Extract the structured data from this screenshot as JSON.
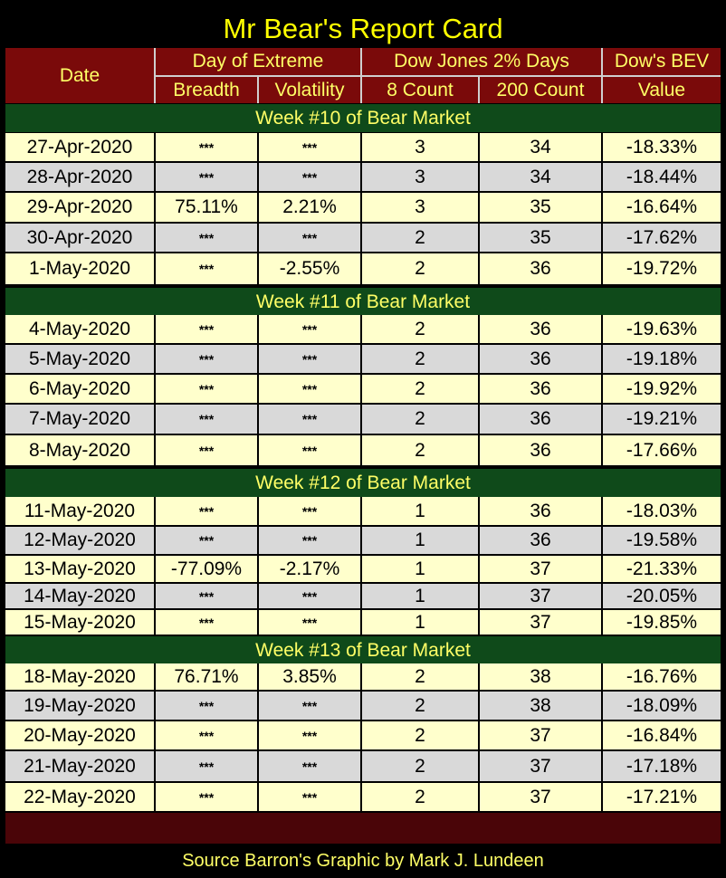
{
  "title": "Mr Bear's Report Card",
  "header": {
    "date": "Date",
    "day_of_extreme": "Day of Extreme",
    "breadth": "Breadth",
    "volatility": "Volatility",
    "dow_jones_2pct": "Dow Jones 2% Days",
    "count_8": "8 Count",
    "count_200": "200 Count",
    "dows_bev": "Dow's BEV",
    "value": "Value"
  },
  "weeks": [
    {
      "label": "Week #10 of Bear Market",
      "rows": [
        {
          "date": "27-Apr-2020",
          "breadth": "***",
          "volatility": "***",
          "c8": "3",
          "c200": "34",
          "bev": "-18.33%"
        },
        {
          "date": "28-Apr-2020",
          "breadth": "***",
          "volatility": "***",
          "c8": "3",
          "c200": "34",
          "bev": "-18.44%"
        },
        {
          "date": "29-Apr-2020",
          "breadth": "75.11%",
          "volatility": "2.21%",
          "c8": "3",
          "c200": "35",
          "bev": "-16.64%"
        },
        {
          "date": "30-Apr-2020",
          "breadth": "***",
          "volatility": "***",
          "c8": "2",
          "c200": "35",
          "bev": "-17.62%"
        },
        {
          "date": "1-May-2020",
          "breadth": "***",
          "volatility": "-2.55%",
          "c8": "2",
          "c200": "36",
          "bev": "-19.72%"
        }
      ]
    },
    {
      "label": "Week #11 of Bear Market",
      "rows": [
        {
          "date": "4-May-2020",
          "breadth": "***",
          "volatility": "***",
          "c8": "2",
          "c200": "36",
          "bev": "-19.63%"
        },
        {
          "date": "5-May-2020",
          "breadth": "***",
          "volatility": "***",
          "c8": "2",
          "c200": "36",
          "bev": "-19.18%"
        },
        {
          "date": "6-May-2020",
          "breadth": "***",
          "volatility": "***",
          "c8": "2",
          "c200": "36",
          "bev": "-19.92%"
        },
        {
          "date": "7-May-2020",
          "breadth": "***",
          "volatility": "***",
          "c8": "2",
          "c200": "36",
          "bev": "-19.21%"
        },
        {
          "date": "8-May-2020",
          "breadth": "***",
          "volatility": "***",
          "c8": "2",
          "c200": "36",
          "bev": "-17.66%"
        }
      ]
    },
    {
      "label": "Week #12 of Bear Market",
      "rows": [
        {
          "date": "11-May-2020",
          "breadth": "***",
          "volatility": "***",
          "c8": "1",
          "c200": "36",
          "bev": "-18.03%"
        },
        {
          "date": "12-May-2020",
          "breadth": "***",
          "volatility": "***",
          "c8": "1",
          "c200": "36",
          "bev": "-19.58%"
        },
        {
          "date": "13-May-2020",
          "breadth": "-77.09%",
          "volatility": "-2.17%",
          "c8": "1",
          "c200": "37",
          "bev": "-21.33%"
        },
        {
          "date": "14-May-2020",
          "breadth": "***",
          "volatility": "***",
          "c8": "1",
          "c200": "37",
          "bev": "-20.05%"
        },
        {
          "date": "15-May-2020",
          "breadth": "***",
          "volatility": "***",
          "c8": "1",
          "c200": "37",
          "bev": "-19.85%"
        }
      ]
    },
    {
      "label": "Week #13 of Bear Market",
      "rows": [
        {
          "date": "18-May-2020",
          "breadth": "76.71%",
          "volatility": "3.85%",
          "c8": "2",
          "c200": "38",
          "bev": "-16.76%"
        },
        {
          "date": "19-May-2020",
          "breadth": "***",
          "volatility": "***",
          "c8": "2",
          "c200": "38",
          "bev": "-18.09%"
        },
        {
          "date": "20-May-2020",
          "breadth": "***",
          "volatility": "***",
          "c8": "2",
          "c200": "37",
          "bev": "-16.84%"
        },
        {
          "date": "21-May-2020",
          "breadth": "***",
          "volatility": "***",
          "c8": "2",
          "c200": "37",
          "bev": "-17.18%"
        },
        {
          "date": "22-May-2020",
          "breadth": "***",
          "volatility": "***",
          "c8": "2",
          "c200": "37",
          "bev": "-17.21%"
        }
      ]
    }
  ],
  "footer": "Source Barron's  Graphic by Mark J. Lundeen",
  "colors": {
    "title_text": "#ffff00",
    "header_bg": "#7a0a0a",
    "week_bg": "#0f4a1a",
    "row_odd": "#ffffcc",
    "row_even": "#d9d9d9"
  }
}
